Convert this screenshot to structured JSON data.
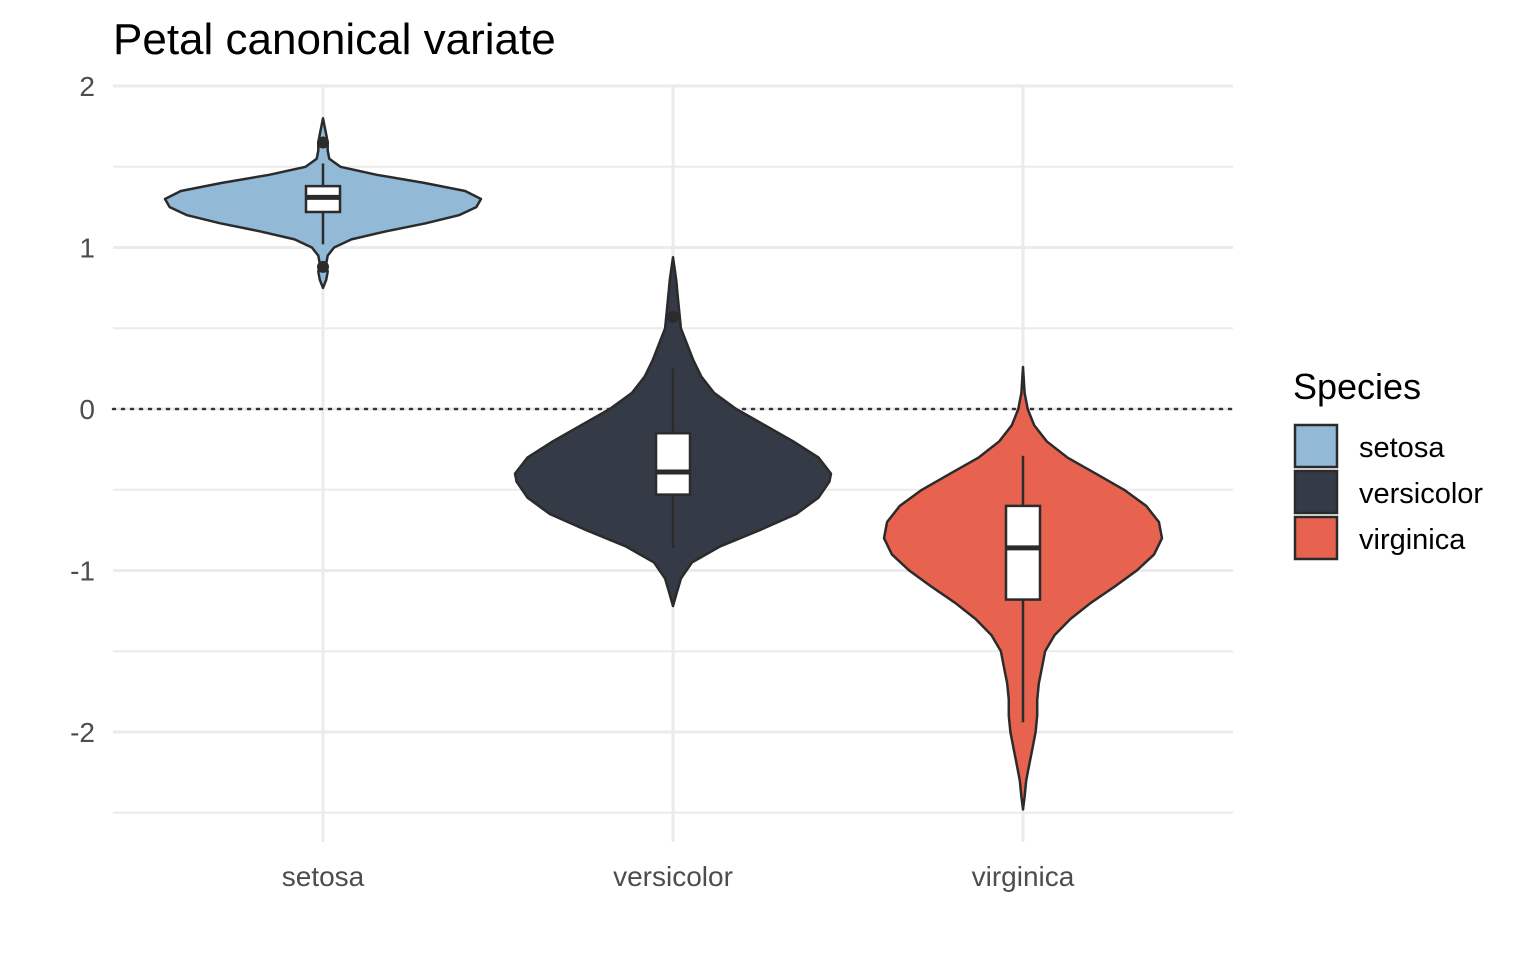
{
  "chart_data": {
    "type": "violin",
    "title": "Petal canonical variate",
    "xlabel": "",
    "ylabel": "",
    "ylim": [
      -2.6,
      2.0
    ],
    "y_ticks": [
      2,
      1,
      0,
      -1,
      -2
    ],
    "y_tick_labels": [
      "2",
      "1",
      "0",
      "-1",
      "-2"
    ],
    "grid": true,
    "reference_line": {
      "y": 0,
      "style": "dotted"
    },
    "categories": [
      "setosa",
      "versicolor",
      "virginica"
    ],
    "legend": {
      "title": "Species",
      "placement": "right",
      "entries": [
        "setosa",
        "versicolor",
        "virginica"
      ]
    },
    "series": [
      {
        "category": "setosa",
        "color": "#92B9D6",
        "violin": {
          "min": 0.75,
          "max": 1.8,
          "density": [
            [
              0.75,
              0.0
            ],
            [
              0.8,
              0.02
            ],
            [
              0.85,
              0.03
            ],
            [
              0.9,
              0.02
            ],
            [
              0.95,
              0.03
            ],
            [
              1.0,
              0.07
            ],
            [
              1.05,
              0.18
            ],
            [
              1.1,
              0.4
            ],
            [
              1.15,
              0.65
            ],
            [
              1.2,
              0.86
            ],
            [
              1.25,
              0.97
            ],
            [
              1.3,
              1.0
            ],
            [
              1.35,
              0.9
            ],
            [
              1.4,
              0.64
            ],
            [
              1.45,
              0.34
            ],
            [
              1.5,
              0.11
            ],
            [
              1.55,
              0.04
            ],
            [
              1.6,
              0.03
            ],
            [
              1.65,
              0.03
            ],
            [
              1.7,
              0.02
            ],
            [
              1.75,
              0.01
            ],
            [
              1.8,
              0.0
            ]
          ]
        },
        "box": {
          "q1": 1.22,
          "median": 1.31,
          "q3": 1.38,
          "whisker_low": 1.02,
          "whisker_high": 1.52
        },
        "outliers": [
          1.65,
          0.88
        ]
      },
      {
        "category": "versicolor",
        "color": "#343A46",
        "violin": {
          "min": -1.22,
          "max": 0.94,
          "density": [
            [
              -1.22,
              0.0
            ],
            [
              -1.15,
              0.02
            ],
            [
              -1.05,
              0.05
            ],
            [
              -0.95,
              0.12
            ],
            [
              -0.85,
              0.3
            ],
            [
              -0.75,
              0.55
            ],
            [
              -0.65,
              0.78
            ],
            [
              -0.55,
              0.92
            ],
            [
              -0.45,
              0.99
            ],
            [
              -0.4,
              1.0
            ],
            [
              -0.3,
              0.92
            ],
            [
              -0.2,
              0.76
            ],
            [
              -0.1,
              0.58
            ],
            [
              0.0,
              0.4
            ],
            [
              0.1,
              0.26
            ],
            [
              0.2,
              0.18
            ],
            [
              0.3,
              0.13
            ],
            [
              0.4,
              0.09
            ],
            [
              0.5,
              0.05
            ],
            [
              0.6,
              0.04
            ],
            [
              0.7,
              0.03
            ],
            [
              0.8,
              0.02
            ],
            [
              0.94,
              0.0
            ]
          ]
        },
        "box": {
          "q1": -0.53,
          "median": -0.39,
          "q3": -0.15,
          "whisker_low": -0.86,
          "whisker_high": 0.25
        },
        "outliers": [
          0.57
        ]
      },
      {
        "category": "virginica",
        "color": "#E8634F",
        "violin": {
          "min": -2.48,
          "max": 0.26,
          "density": [
            [
              -2.48,
              0.0
            ],
            [
              -2.4,
              0.01
            ],
            [
              -2.3,
              0.02
            ],
            [
              -2.2,
              0.04
            ],
            [
              -2.1,
              0.06
            ],
            [
              -2.0,
              0.08
            ],
            [
              -1.9,
              0.09
            ],
            [
              -1.8,
              0.09
            ],
            [
              -1.7,
              0.1
            ],
            [
              -1.6,
              0.12
            ],
            [
              -1.5,
              0.14
            ],
            [
              -1.4,
              0.2
            ],
            [
              -1.3,
              0.3
            ],
            [
              -1.2,
              0.43
            ],
            [
              -1.1,
              0.58
            ],
            [
              -1.0,
              0.72
            ],
            [
              -0.9,
              0.83
            ],
            [
              -0.8,
              0.88
            ],
            [
              -0.7,
              0.86
            ],
            [
              -0.6,
              0.78
            ],
            [
              -0.5,
              0.64
            ],
            [
              -0.4,
              0.46
            ],
            [
              -0.3,
              0.28
            ],
            [
              -0.2,
              0.15
            ],
            [
              -0.1,
              0.07
            ],
            [
              0.0,
              0.03
            ],
            [
              0.1,
              0.01
            ],
            [
              0.26,
              0.0
            ]
          ]
        },
        "box": {
          "q1": -1.18,
          "median": -0.86,
          "q3": -0.6,
          "whisker_low": -1.94,
          "whisker_high": -0.29
        },
        "outliers": []
      }
    ]
  }
}
